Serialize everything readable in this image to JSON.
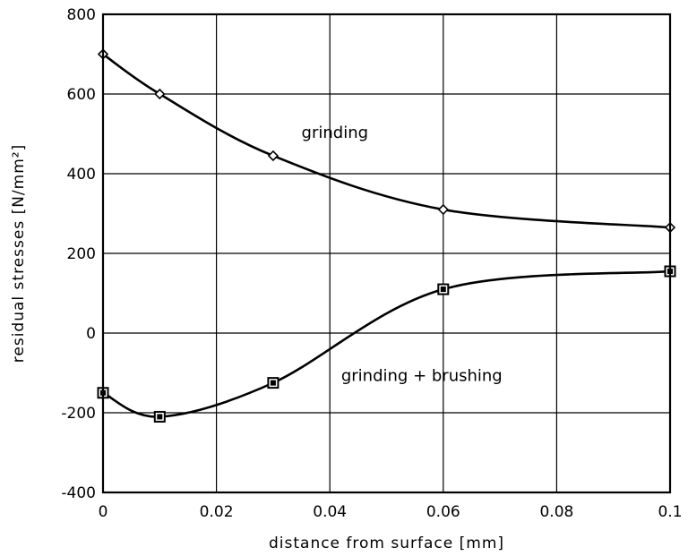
{
  "chart_data": {
    "type": "line",
    "xlabel": "distance from surface [mm]",
    "ylabel": "residual stresses [N/mm²]",
    "xlim": [
      0,
      0.1
    ],
    "ylim": [
      -400,
      800
    ],
    "grid": true,
    "x_ticks": [
      0,
      0.02,
      0.04,
      0.06,
      0.08,
      0.1
    ],
    "x_tick_labels": [
      "0",
      "0.02",
      "0.04",
      "0.06",
      "0.08",
      "0.1"
    ],
    "y_ticks": [
      -400,
      -200,
      0,
      200,
      400,
      600,
      800
    ],
    "y_tick_labels": [
      "-400",
      "-200",
      "0",
      "200",
      "400",
      "600",
      "800"
    ],
    "series": [
      {
        "name": "grinding",
        "marker": "diamond",
        "label_position": [
          0.035,
          490
        ],
        "x": [
          0,
          0.01,
          0.03,
          0.06,
          0.1
        ],
        "y": [
          700,
          600,
          445,
          310,
          265
        ]
      },
      {
        "name": "grinding + brushing",
        "marker": "boxed-square",
        "label_position": [
          0.042,
          -120
        ],
        "x": [
          0,
          0.01,
          0.03,
          0.06,
          0.1
        ],
        "y": [
          -150,
          -210,
          -125,
          110,
          155
        ]
      }
    ],
    "colors": {
      "line": "#000000",
      "marker_fill_diamond": "#ffffff",
      "background": "#ffffff"
    }
  }
}
